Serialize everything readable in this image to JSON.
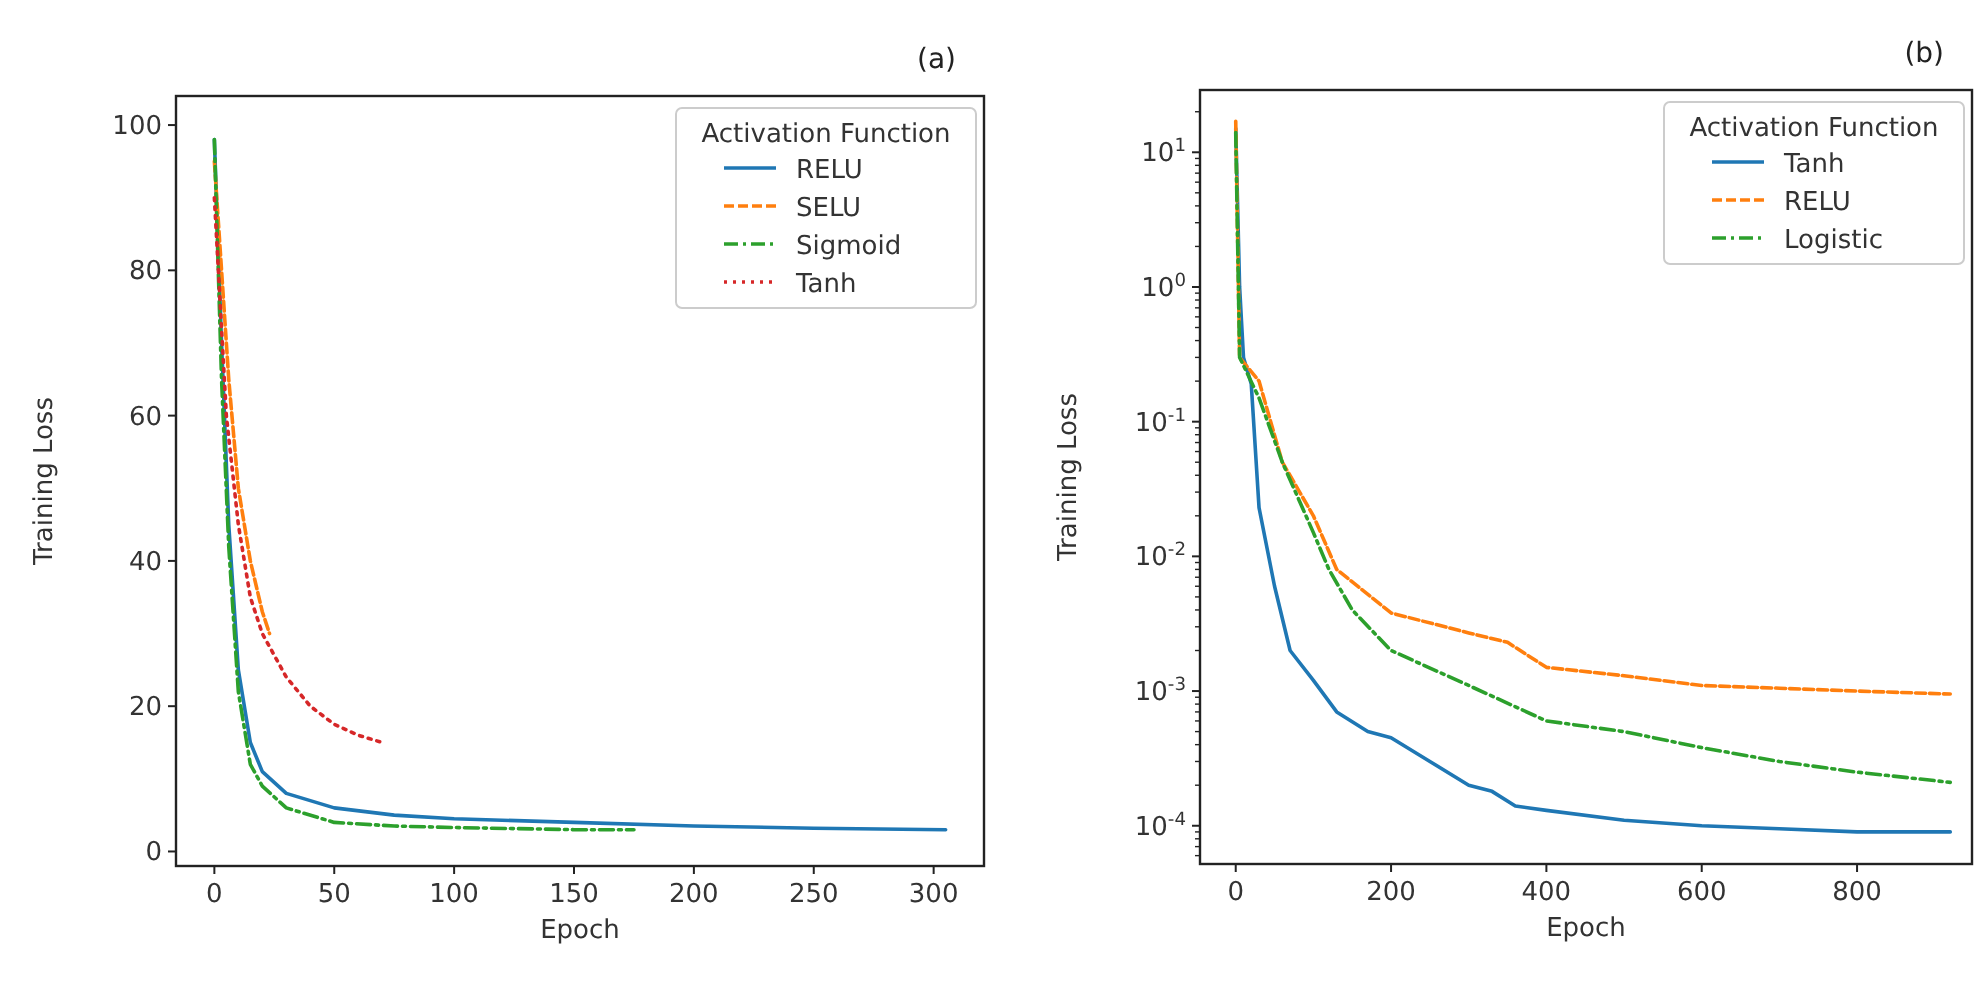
{
  "chart_data": [
    {
      "type": "line",
      "title": "(a)",
      "xlabel": "Epoch",
      "ylabel": "Training Loss",
      "legend_title": "Activation Function",
      "legend": "top right",
      "grid": false,
      "xlim": [
        -16,
        321
      ],
      "xticks": [
        0,
        50,
        100,
        150,
        200,
        250,
        300
      ],
      "ylim": [
        -2,
        104
      ],
      "yticks": [
        0,
        20,
        40,
        60,
        80,
        100
      ],
      "series": [
        {
          "name": "RELU",
          "color": "#1f77b4",
          "line_style": "solid",
          "x": [
            0,
            3,
            6,
            10,
            15,
            20,
            30,
            50,
            75,
            100,
            150,
            200,
            250,
            305
          ],
          "values": [
            98,
            70,
            45,
            25,
            15,
            11,
            8,
            6,
            5,
            4.5,
            4,
            3.5,
            3.2,
            3
          ]
        },
        {
          "name": "SELU",
          "color": "#ff7f0e",
          "line_style": "dashed",
          "x": [
            0,
            3,
            6,
            10,
            15,
            20,
            23
          ],
          "values": [
            95,
            80,
            65,
            50,
            40,
            33,
            30
          ]
        },
        {
          "name": "Sigmoid",
          "color": "#2ca02c",
          "line_style": "dashdot",
          "x": [
            0,
            3,
            6,
            10,
            15,
            20,
            30,
            50,
            75,
            100,
            150,
            175
          ],
          "values": [
            98,
            65,
            42,
            22,
            12,
            9,
            6,
            4,
            3.5,
            3.3,
            3,
            3
          ]
        },
        {
          "name": "Tanh",
          "color": "#d62728",
          "line_style": "dotted",
          "x": [
            0,
            5,
            10,
            15,
            20,
            30,
            40,
            50,
            60,
            70
          ],
          "values": [
            90,
            60,
            45,
            35,
            30,
            24,
            20,
            17.5,
            16,
            15
          ]
        }
      ]
    },
    {
      "type": "line",
      "title": "(b)",
      "xlabel": "Epoch",
      "ylabel": "Training Loss",
      "legend_title": "Activation Function",
      "legend": "top right",
      "grid": false,
      "log": "y",
      "xlim": [
        -46,
        948
      ],
      "xticks": [
        0,
        200,
        400,
        600,
        800
      ],
      "ylim": [
        5.2e-05,
        29
      ],
      "yticks": [
        {
          "value": 0.0001,
          "label": "10$^{-4}$"
        },
        {
          "value": 0.001,
          "label": "10$^{-3}$"
        },
        {
          "value": 0.01,
          "label": "10$^{-2}$"
        },
        {
          "value": 0.1,
          "label": "10$^{-1}$"
        },
        {
          "value": 1,
          "label": "10$^{0}$"
        },
        {
          "value": 10,
          "label": "10$^{1}$"
        }
      ],
      "series": [
        {
          "name": "Tanh",
          "color": "#1f77b4",
          "line_style": "solid",
          "x": [
            0,
            5,
            10,
            20,
            30,
            50,
            70,
            100,
            130,
            170,
            200,
            250,
            300,
            330,
            360,
            400,
            500,
            600,
            700,
            800,
            920
          ],
          "values": [
            15,
            1,
            0.3,
            0.19,
            0.023,
            0.006,
            0.002,
            0.0012,
            0.0007,
            0.0005,
            0.00045,
            0.0003,
            0.0002,
            0.00018,
            0.00014,
            0.00013,
            0.00011,
            0.0001,
            9.5e-05,
            9e-05,
            9e-05
          ]
        },
        {
          "name": "RELU",
          "color": "#ff7f0e",
          "line_style": "dashed",
          "x": [
            0,
            5,
            30,
            60,
            100,
            130,
            200,
            300,
            350,
            400,
            500,
            600,
            700,
            800,
            920
          ],
          "values": [
            17,
            0.3,
            0.2,
            0.05,
            0.02,
            0.008,
            0.0038,
            0.0027,
            0.0023,
            0.0015,
            0.0013,
            0.0011,
            0.00105,
            0.001,
            0.00095
          ]
        },
        {
          "name": "Logistic",
          "color": "#2ca02c",
          "line_style": "dashdot",
          "x": [
            0,
            5,
            30,
            60,
            100,
            120,
            150,
            200,
            300,
            400,
            500,
            600,
            700,
            800,
            920
          ],
          "values": [
            14,
            0.3,
            0.15,
            0.05,
            0.015,
            0.008,
            0.004,
            0.002,
            0.0011,
            0.0006,
            0.0005,
            0.00038,
            0.0003,
            0.00025,
            0.00021
          ]
        }
      ]
    }
  ]
}
